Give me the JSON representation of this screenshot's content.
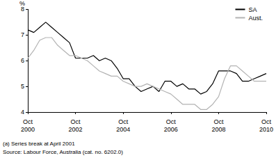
{
  "chart_data": {
    "type": "line",
    "y_label": "%",
    "footnotes": [
      "(a) Series break at April 2001",
      "Source: Labour Force, Australia (cat. no. 6202.0)"
    ],
    "categories": [
      "Oct 2000",
      null,
      null,
      null,
      null,
      null,
      null,
      null,
      "Oct 2002",
      null,
      null,
      null,
      null,
      null,
      null,
      null,
      "Oct 2004",
      null,
      null,
      null,
      null,
      null,
      null,
      null,
      "Oct 2006",
      null,
      null,
      null,
      null,
      null,
      null,
      null,
      "Oct 2008",
      null,
      null,
      null,
      null,
      null,
      null,
      null,
      "Oct 2010"
    ],
    "series": [
      {
        "name": "SA",
        "color": "#000000",
        "values": [
          7.2,
          7.1,
          7.3,
          7.5,
          7.3,
          7.1,
          6.9,
          6.7,
          6.1,
          6.1,
          6.1,
          6.2,
          6.0,
          6.1,
          6.0,
          5.7,
          5.3,
          5.3,
          5.0,
          4.8,
          4.9,
          5.0,
          4.8,
          5.2,
          5.2,
          5.0,
          5.1,
          4.9,
          4.9,
          4.7,
          4.8,
          5.1,
          5.6,
          5.6,
          5.6,
          5.5,
          5.2,
          5.2,
          5.3,
          5.4,
          5.5
        ]
      },
      {
        "name": "Aust.",
        "color": "#b3b3b3",
        "values": [
          6.1,
          6.4,
          6.8,
          6.9,
          6.9,
          6.6,
          6.4,
          6.2,
          6.2,
          6.1,
          6.0,
          5.8,
          5.6,
          5.5,
          5.4,
          5.4,
          5.2,
          5.1,
          5.0,
          5.0,
          5.1,
          5.0,
          4.9,
          4.8,
          4.7,
          4.5,
          4.3,
          4.3,
          4.3,
          4.1,
          4.1,
          4.3,
          4.6,
          5.3,
          5.8,
          5.8,
          5.6,
          5.4,
          5.2,
          5.2,
          5.2
        ]
      }
    ],
    "ylim": [
      4,
      8
    ],
    "yticks": [
      4,
      5,
      6,
      7,
      8
    ],
    "grid": false,
    "legend": "top-right"
  }
}
